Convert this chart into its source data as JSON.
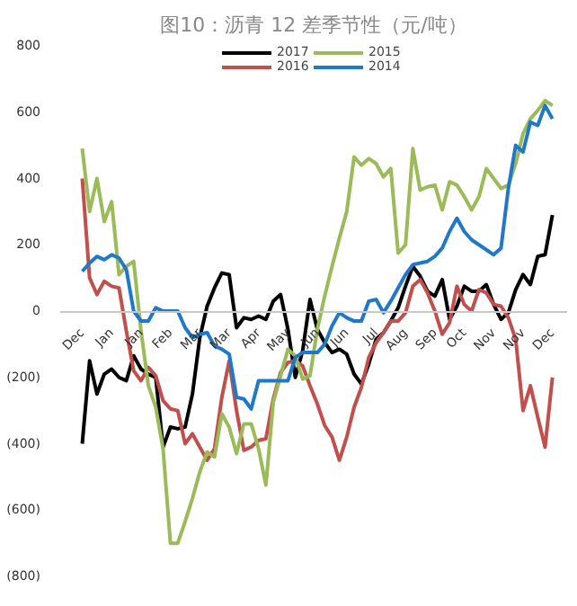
{
  "chart_data": {
    "type": "line",
    "title": "图10：沥青 12 差季节性（元/吨）",
    "categories": [
      "Dec",
      null,
      null,
      null,
      "Jan",
      null,
      null,
      null,
      "Jan",
      null,
      null,
      null,
      "Feb",
      null,
      null,
      null,
      "Mar",
      null,
      null,
      null,
      "Mar",
      null,
      null,
      null,
      "Apr",
      null,
      null,
      null,
      "May",
      null,
      null,
      null,
      "Jun",
      null,
      null,
      null,
      "Jun",
      null,
      null,
      null,
      "Jul",
      null,
      null,
      null,
      "Aug",
      null,
      null,
      null,
      "Sep",
      null,
      null,
      null,
      "Oct",
      null,
      null,
      null,
      "Nov",
      null,
      null,
      null,
      "Nov",
      null,
      null,
      null,
      "Dec"
    ],
    "ylim": [
      -800,
      800
    ],
    "yticks": [
      {
        "value": -800,
        "label": "(800)"
      },
      {
        "value": -600,
        "label": "(600)"
      },
      {
        "value": -400,
        "label": "(400)"
      },
      {
        "value": -200,
        "label": "(200)"
      },
      0,
      200,
      400,
      600,
      800
    ],
    "legend": "top",
    "line_style": "solid",
    "series": [
      {
        "name": "2017",
        "color": "#000000",
        "values": [
          -400,
          -150,
          -250,
          -190,
          -175,
          -200,
          -210,
          -135,
          -175,
          -190,
          -200,
          -410,
          -350,
          -355,
          -350,
          -250,
          -80,
          15,
          70,
          115,
          110,
          -50,
          -20,
          -25,
          -15,
          -25,
          30,
          50,
          -55,
          -200,
          -120,
          35,
          -55,
          -95,
          -125,
          -115,
          -130,
          -190,
          -220,
          -160,
          -85,
          -65,
          -30,
          10,
          75,
          135,
          105,
          60,
          45,
          95,
          -25,
          15,
          75,
          60,
          60,
          80,
          20,
          -25,
          -5,
          65,
          110,
          80,
          165,
          170,
          290
        ]
      },
      {
        "name": "2016",
        "color": "#c0504d",
        "values": [
          400,
          100,
          50,
          90,
          75,
          70,
          -60,
          -180,
          -210,
          -170,
          -195,
          -270,
          -295,
          -300,
          -400,
          -370,
          -410,
          -450,
          -415,
          -260,
          -150,
          -300,
          -420,
          -410,
          -390,
          -385,
          -265,
          -185,
          -155,
          -150,
          -165,
          -225,
          -280,
          -345,
          -380,
          -450,
          -380,
          -290,
          -230,
          -140,
          -95,
          -65,
          -30,
          -30,
          -5,
          75,
          95,
          55,
          0,
          -70,
          -35,
          75,
          20,
          0,
          65,
          55,
          20,
          15,
          -20,
          -85,
          -300,
          -225,
          -320,
          -410,
          -200
        ]
      },
      {
        "name": "2015",
        "color": "#9bbb59",
        "values": [
          490,
          300,
          400,
          270,
          330,
          110,
          135,
          150,
          -60,
          -225,
          -290,
          -415,
          -700,
          -700,
          -635,
          -565,
          -485,
          -425,
          -440,
          -310,
          -350,
          -430,
          -340,
          -340,
          -415,
          -525,
          -275,
          -195,
          -115,
          -135,
          -205,
          -195,
          -55,
          45,
          135,
          220,
          300,
          465,
          440,
          460,
          445,
          405,
          430,
          175,
          200,
          490,
          365,
          375,
          380,
          305,
          390,
          380,
          345,
          305,
          345,
          430,
          400,
          370,
          380,
          445,
          535,
          580,
          605,
          635,
          620
        ]
      },
      {
        "name": "2014",
        "color": "#1f78c8",
        "values": [
          120,
          145,
          165,
          155,
          170,
          160,
          125,
          0,
          -30,
          -30,
          10,
          0,
          0,
          0,
          -50,
          -80,
          -70,
          -65,
          -105,
          -115,
          -130,
          -260,
          -265,
          -295,
          -210,
          -210,
          -210,
          -210,
          -210,
          -140,
          -125,
          -125,
          -125,
          -100,
          -45,
          -5,
          -20,
          -30,
          -30,
          30,
          35,
          -5,
          30,
          70,
          110,
          140,
          145,
          150,
          165,
          190,
          240,
          280,
          240,
          215,
          200,
          185,
          170,
          190,
          370,
          500,
          480,
          570,
          560,
          620,
          580
        ]
      }
    ]
  }
}
